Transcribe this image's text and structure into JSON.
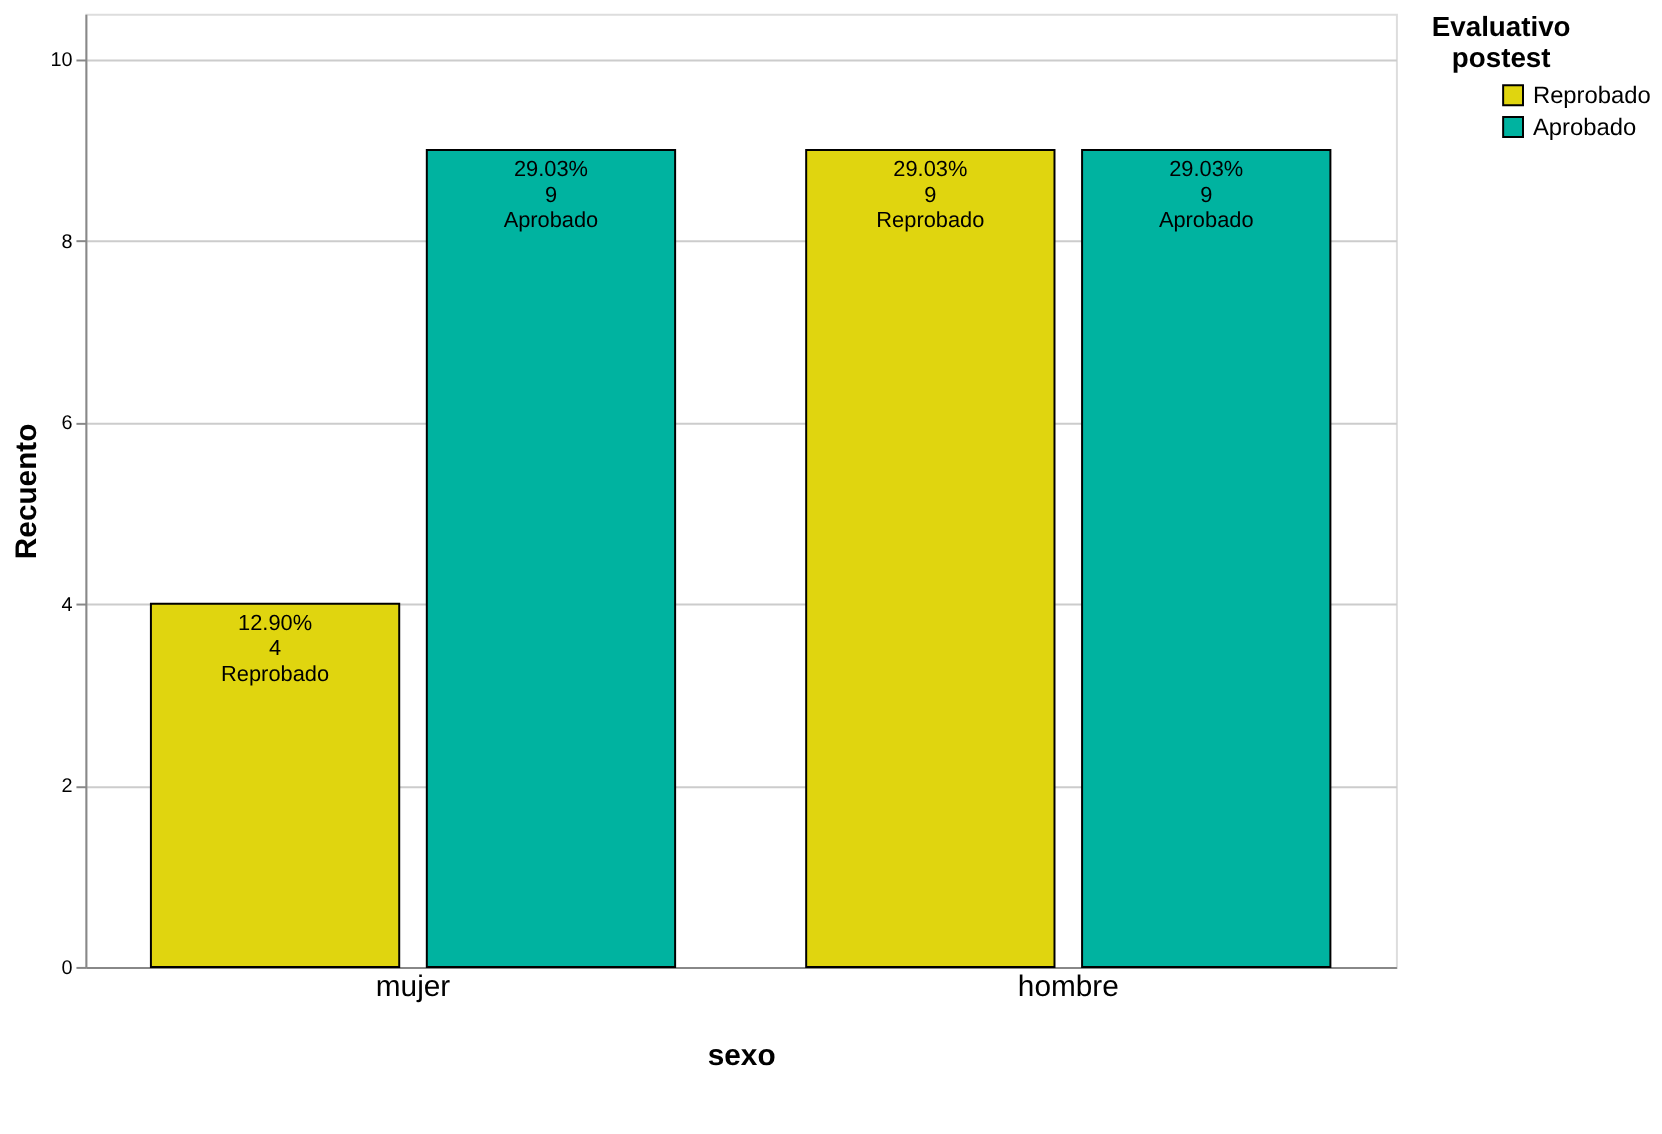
{
  "chart_data": {
    "type": "bar",
    "xlabel": "sexo",
    "ylabel": "Recuento",
    "legend_title": "Evaluativo postest",
    "categories": [
      "mujer",
      "hombre"
    ],
    "series": [
      {
        "name": "Reprobado",
        "color": "#e0d50f",
        "values": [
          4,
          9
        ],
        "value_labels": [
          "12.90%\n4\nReprobado",
          "29.03%\n9\nReprobado"
        ]
      },
      {
        "name": "Aprobado",
        "color": "#00b3a0",
        "values": [
          9,
          9
        ],
        "value_labels": [
          "29.03%\n9\nAprobado",
          "29.03%\n9\nAprobado"
        ]
      }
    ],
    "ylim": [
      0,
      10.5
    ],
    "yticks": [
      0,
      2,
      4,
      6,
      8,
      10
    ],
    "grid": "y",
    "legend": "top right"
  }
}
